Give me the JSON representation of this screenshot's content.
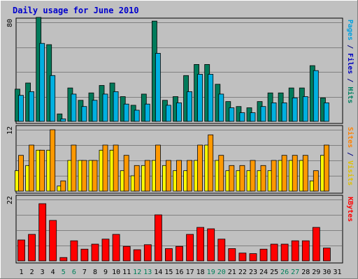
{
  "chart_data": {
    "type": "bar",
    "title": "Daily usage for June 2010",
    "categories": [
      "1",
      "2",
      "3",
      "4",
      "5",
      "6",
      "7",
      "8",
      "9",
      "10",
      "11",
      "12",
      "13",
      "14",
      "15",
      "16",
      "17",
      "18",
      "19",
      "20",
      "21",
      "22",
      "23",
      "24",
      "25",
      "26",
      "27",
      "28",
      "29",
      "30",
      "31"
    ],
    "weekend_days": [
      "5",
      "6",
      "12",
      "13",
      "19",
      "20",
      "26",
      "27"
    ],
    "panels": [
      {
        "id": "hits",
        "scale_max_label": "80",
        "ylim": [
          0,
          80
        ],
        "side_labels": [
          {
            "text": "Pages",
            "color": "#00a0e0"
          },
          {
            "text": " / ",
            "color": "#000080"
          },
          {
            "text": "Files",
            "color": "#0000c0"
          },
          {
            "text": " / ",
            "color": "#000080"
          },
          {
            "text": "Hits",
            "color": "#008060"
          }
        ],
        "series": [
          {
            "name": "Hits",
            "color": "#007a5a",
            "values": [
              26,
              31,
              84,
              62,
              6,
              27,
              17,
              23,
              29,
              31,
              20,
              13,
              22,
              81,
              17,
              20,
              37,
              46,
              46,
              30,
              16,
              12,
              11,
              16,
              23,
              23,
              27,
              27,
              45,
              19,
              0
            ]
          },
          {
            "name": "Files",
            "color": "#00b0e0",
            "values": [
              21,
              24,
              63,
              37,
              2,
              22,
              12,
              17,
              22,
              24,
              14,
              9,
              14,
              55,
              13,
              15,
              24,
              38,
              38,
              22,
              11,
              7,
              7,
              12,
              15,
              15,
              19,
              20,
              41,
              15,
              0
            ]
          }
        ]
      },
      {
        "id": "visits",
        "scale_max_label": "12",
        "ylim": [
          0,
          12
        ],
        "side_labels": [
          {
            "text": "Sites",
            "color": "#ff8000"
          },
          {
            "text": " / ",
            "color": "#000080"
          },
          {
            "text": "Visits",
            "color": "#e0c000"
          }
        ],
        "series": [
          {
            "name": "Visits",
            "color": "#ffff00",
            "values": [
              4,
              5,
              8,
              8,
              1,
              6,
              6,
              6,
              8,
              8,
              4,
              3,
              5,
              6,
              5,
              4,
              4,
              6,
              9,
              6,
              4,
              4,
              4,
              4,
              4,
              6,
              6,
              6,
              2,
              7,
              0
            ]
          },
          {
            "name": "Sites",
            "color": "#ff9900",
            "values": [
              7,
              9,
              8,
              12,
              2,
              9,
              6,
              6,
              9,
              9,
              7,
              5,
              6,
              9,
              6,
              6,
              6,
              9,
              11,
              7,
              5,
              5,
              6,
              5,
              6,
              7,
              7,
              7,
              4,
              9,
              0
            ]
          }
        ]
      },
      {
        "id": "kbytes",
        "scale_max_label": "22",
        "ylim": [
          0,
          22
        ],
        "side_labels": [
          {
            "text": "KBytes",
            "color": "#ff0000"
          }
        ],
        "series": [
          {
            "name": "KBytes",
            "color": "#ff0000",
            "values": [
              7.5,
              9.5,
              20.5,
              14.5,
              1.2,
              7.2,
              4.2,
              6,
              7.8,
              9.5,
              5.2,
              4,
              5.8,
              16.5,
              4.4,
              5.2,
              9.5,
              12,
              11.5,
              7.8,
              4.4,
              2.8,
              2.6,
              4.2,
              6,
              6,
              7.2,
              7.2,
              12,
              4.6,
              0
            ]
          }
        ]
      }
    ]
  }
}
